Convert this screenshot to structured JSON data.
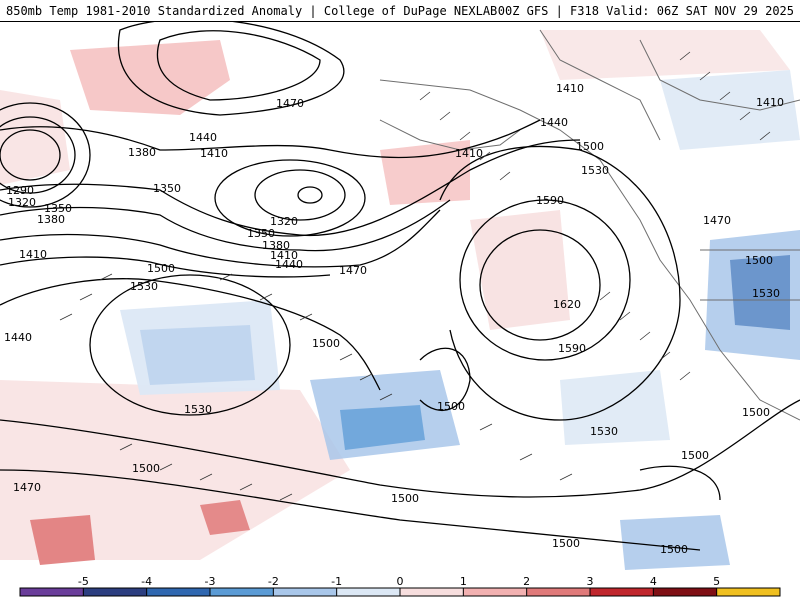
{
  "header": {
    "title_left": "850mb Temp 1981-2010 Standardized Anomaly | College of DuPage NEXLAB",
    "title_right": "00Z GFS | F318 Valid: 06Z SAT NOV 29 2025"
  },
  "map": {
    "contour_labels": [
      {
        "text": "1470"
      },
      {
        "text": "1440"
      },
      {
        "text": "1410"
      },
      {
        "text": "1380"
      },
      {
        "text": "1350"
      },
      {
        "text": "1320"
      },
      {
        "text": "1290"
      },
      {
        "text": "1320"
      },
      {
        "text": "1350"
      },
      {
        "text": "1380"
      },
      {
        "text": "1410"
      },
      {
        "text": "1440"
      },
      {
        "text": "1470"
      },
      {
        "text": "1500"
      },
      {
        "text": "1530"
      },
      {
        "text": "1530"
      },
      {
        "text": "1500"
      },
      {
        "text": "1440"
      },
      {
        "text": "1410"
      },
      {
        "text": "1410"
      },
      {
        "text": "1440"
      },
      {
        "text": "1500"
      },
      {
        "text": "1530"
      },
      {
        "text": "1590"
      },
      {
        "text": "1620"
      },
      {
        "text": "1590"
      },
      {
        "text": "1530"
      },
      {
        "text": "1500"
      },
      {
        "text": "1470"
      },
      {
        "text": "1500"
      },
      {
        "text": "1530"
      },
      {
        "text": "1500"
      },
      {
        "text": "1500"
      },
      {
        "text": "1500"
      },
      {
        "text": "1500"
      },
      {
        "text": "1470"
      },
      {
        "text": "1500"
      },
      {
        "text": "1500"
      },
      {
        "text": "1410"
      },
      {
        "text": "1350"
      },
      {
        "text": "1380"
      },
      {
        "text": "1410"
      }
    ]
  },
  "colorbar": {
    "ticks": [
      "-5",
      "-4",
      "-3",
      "-2",
      "-1",
      "0",
      "1",
      "2",
      "3",
      "4",
      "5"
    ],
    "colors": [
      "#6a3d9a",
      "#2c3e80",
      "#2f67b0",
      "#5b9bd5",
      "#a9c7ea",
      "#dce8f5",
      "#f7dede",
      "#f2b1b1",
      "#e07a7a",
      "#c0272d",
      "#7f0f14",
      "#f0c020"
    ]
  }
}
